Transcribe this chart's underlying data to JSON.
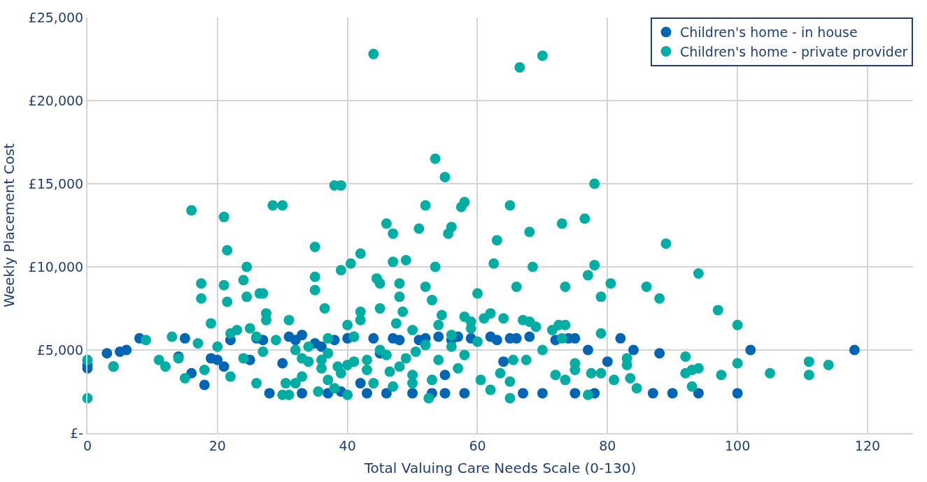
{
  "chart_data": {
    "type": "scatter",
    "xlabel": "Total Valuing Care Needs Scale (0-130)",
    "ylabel": "Weekly Placement Cost",
    "xlim": [
      0,
      127
    ],
    "xticks": [
      0,
      20,
      40,
      60,
      80,
      100,
      120
    ],
    "ylim": [
      0,
      25000
    ],
    "yticks": [
      {
        "value": 0,
        "label": "£-"
      },
      {
        "value": 5000,
        "label": "£5,000"
      },
      {
        "value": 10000,
        "label": "£10,000"
      },
      {
        "value": 15000,
        "label": "£15,000"
      },
      {
        "value": 20000,
        "label": "£20,000"
      },
      {
        "value": 25000,
        "label": "£25,000"
      }
    ],
    "grid": true,
    "legend": "top right",
    "marker": "circle",
    "series": [
      {
        "name": "Children's home - in house",
        "color": "#0066b3",
        "x": [
          0,
          0,
          3,
          4,
          5,
          6,
          8,
          15,
          14,
          16,
          18,
          19,
          20,
          21,
          22,
          25,
          26,
          27,
          28,
          30,
          31,
          32,
          33,
          33,
          35,
          36,
          37,
          38,
          39,
          40,
          41,
          42,
          43,
          44,
          45,
          46,
          47,
          48,
          50,
          51,
          52,
          53,
          54,
          55,
          55,
          56,
          57,
          58,
          59,
          62,
          63,
          64,
          65,
          66,
          67,
          68,
          70,
          72,
          74,
          75,
          75,
          77,
          78,
          80,
          82,
          84,
          87,
          88,
          90,
          94,
          100,
          102,
          118
        ],
        "values": [
          3900,
          4100,
          4800,
          4000,
          4900,
          5000,
          5700,
          5700,
          4600,
          3600,
          2900,
          4500,
          4400,
          4000,
          5600,
          4400,
          5700,
          5600,
          2400,
          4200,
          5800,
          5600,
          5900,
          2400,
          5400,
          5200,
          2400,
          5600,
          2500,
          5700,
          5800,
          3000,
          2400,
          5700,
          4800,
          2400,
          5700,
          5600,
          2400,
          5600,
          5700,
          2400,
          5800,
          2400,
          3500,
          5600,
          5800,
          2400,
          5700,
          5800,
          5600,
          4300,
          5700,
          5700,
          2400,
          5800,
          2400,
          5600,
          5700,
          5700,
          2400,
          5000,
          2400,
          4300,
          5700,
          5000,
          2400,
          4800,
          2400,
          2400,
          2400,
          5000,
          5000
        ]
      },
      {
        "name": "Children's home - private provider",
        "color": "#00ada3",
        "x": [
          0,
          0,
          4,
          9,
          11,
          12,
          13,
          14,
          15,
          16,
          17,
          17.5,
          17.5,
          18,
          19,
          20,
          21,
          21,
          21.5,
          21.5,
          22,
          22,
          23,
          24,
          24,
          24.5,
          24.5,
          25,
          26,
          26,
          26.5,
          27,
          27,
          27.5,
          27.5,
          28.5,
          29,
          30,
          30,
          30.5,
          31,
          31,
          32,
          33,
          33,
          34,
          35,
          35,
          35,
          35.5,
          36,
          36.5,
          37,
          37,
          38,
          38.5,
          39,
          39,
          40,
          40,
          40.5,
          41,
          42,
          42,
          42,
          43,
          44,
          44.5,
          45,
          45,
          45,
          46,
          46.5,
          47,
          47,
          47.5,
          48,
          48,
          48.5,
          49,
          49,
          50,
          50.5,
          51,
          52,
          52,
          52.5,
          53,
          53.5,
          53.5,
          54,
          54.5,
          55,
          55.5,
          56,
          56,
          57,
          57.5,
          58,
          58,
          59,
          59,
          60,
          60,
          60.5,
          61,
          62,
          62,
          62.5,
          63,
          63.5,
          64,
          65,
          65,
          65,
          65.5,
          66,
          66.5,
          67,
          67.5,
          68,
          68,
          68.5,
          69,
          70,
          70,
          71.5,
          72,
          72.5,
          73,
          73,
          73.5,
          73.5,
          73.5,
          75,
          75,
          76.5,
          77,
          77,
          77.5,
          78,
          78,
          79,
          79,
          79,
          80.5,
          81,
          83,
          83,
          83.5,
          84.5,
          86,
          88,
          89,
          92,
          92,
          93,
          93,
          94,
          94,
          97,
          97.5,
          100,
          100,
          105,
          111,
          111,
          114,
          32,
          34,
          37,
          39,
          41,
          43,
          46,
          48,
          50,
          52,
          54,
          56,
          58,
          44,
          47,
          50,
          36,
          38,
          40,
          53
        ],
        "values": [
          4400,
          2100,
          4000,
          5600,
          4400,
          4000,
          5800,
          4500,
          3300,
          13400,
          5400,
          9000,
          8100,
          3800,
          6600,
          5200,
          13000,
          8900,
          7900,
          11000,
          3400,
          6000,
          6200,
          4500,
          9200,
          10000,
          8200,
          6300,
          5800,
          3000,
          8400,
          4900,
          8400,
          7200,
          6800,
          13700,
          5600,
          13700,
          2300,
          3000,
          6800,
          2300,
          5000,
          4500,
          3400,
          4300,
          11200,
          9400,
          8600,
          2500,
          3900,
          7500,
          5700,
          3200,
          14900,
          4000,
          14900,
          9800,
          6500,
          2300,
          10200,
          5800,
          7300,
          6800,
          10800,
          4400,
          22800,
          9300,
          9000,
          7500,
          5000,
          12600,
          3700,
          10300,
          12000,
          6600,
          9000,
          8200,
          7300,
          10400,
          4500,
          6200,
          4900,
          12300,
          13700,
          8800,
          2100,
          8000,
          16500,
          10000,
          6500,
          7100,
          15400,
          12000,
          12400,
          5200,
          3900,
          13600,
          13900,
          7000,
          6700,
          6300,
          8400,
          5500,
          3200,
          6900,
          7200,
          2600,
          10200,
          11600,
          3600,
          6900,
          13700,
          3100,
          2100,
          4400,
          8800,
          22000,
          6800,
          4400,
          12100,
          6700,
          10000,
          6400,
          22700,
          5000,
          6200,
          3500,
          6500,
          12600,
          5700,
          8800,
          6500,
          3200,
          3800,
          4200,
          12900,
          9500,
          2300,
          3600,
          15000,
          10100,
          8200,
          3600,
          6000,
          9000,
          3200,
          4500,
          4100,
          3300,
          2700,
          8800,
          8100,
          11400,
          4600,
          3600,
          2800,
          3800,
          3900,
          9600,
          7400,
          3500,
          6500,
          4200,
          3600,
          4300,
          3500,
          4100,
          3000,
          5200,
          4800,
          3600,
          4300,
          3800,
          4700,
          4000,
          3500,
          5300,
          4400,
          5900,
          4700,
          3000,
          2800,
          3000,
          4400,
          2700,
          4100,
          3200
        ]
      }
    ]
  }
}
